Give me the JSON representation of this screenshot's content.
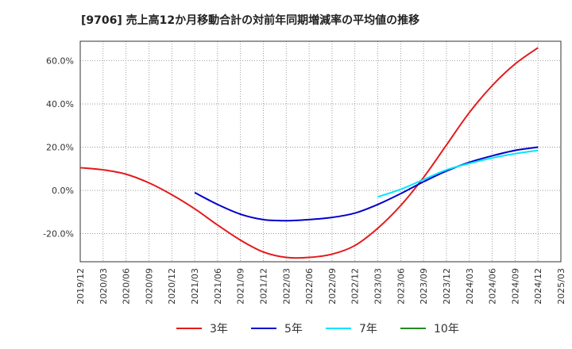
{
  "chart_data": {
    "type": "line",
    "title": "[9706]  売上高12か月移動合計の対前年同期増減率の平均値の推移",
    "xlabel": "",
    "ylabel": "",
    "ylim": [
      -33,
      69
    ],
    "x_ticks": [
      "2019/12",
      "2020/03",
      "2020/06",
      "2020/09",
      "2020/12",
      "2021/03",
      "2021/06",
      "2021/09",
      "2021/12",
      "2022/03",
      "2022/06",
      "2022/09",
      "2022/12",
      "2023/03",
      "2023/06",
      "2023/09",
      "2023/12",
      "2024/03",
      "2024/06",
      "2024/09",
      "2024/12",
      "2025/03"
    ],
    "y_ticks": [
      60,
      40,
      20,
      0,
      -20
    ],
    "y_tick_labels": [
      "60.0%",
      "40.0%",
      "20.0%",
      "0.0%",
      "-20.0%"
    ],
    "grid": true,
    "legend_position": "bottom",
    "series": [
      {
        "name": "3年",
        "color": "#e41a1c",
        "x": [
          "2019/12",
          "2020/03",
          "2020/06",
          "2020/09",
          "2020/12",
          "2021/03",
          "2021/06",
          "2021/09",
          "2021/12",
          "2022/03",
          "2022/06",
          "2022/09",
          "2022/12",
          "2023/03",
          "2023/06",
          "2023/09",
          "2023/12",
          "2024/03",
          "2024/06",
          "2024/09",
          "2024/12"
        ],
        "values": [
          10.5,
          9.5,
          7.5,
          3.5,
          -2.0,
          -8.5,
          -16.0,
          -23.0,
          -28.5,
          -31.0,
          -31.0,
          -29.5,
          -25.5,
          -17.5,
          -7.0,
          6.0,
          21.0,
          36.0,
          48.5,
          58.5,
          66.0
        ]
      },
      {
        "name": "5年",
        "color": "#0000cc",
        "x": [
          "2021/03",
          "2021/06",
          "2021/09",
          "2021/12",
          "2022/03",
          "2022/06",
          "2022/09",
          "2022/12",
          "2023/03",
          "2023/06",
          "2023/09",
          "2023/12",
          "2024/03",
          "2024/06",
          "2024/09",
          "2024/12"
        ],
        "values": [
          -1.0,
          -6.5,
          -11.0,
          -13.5,
          -14.0,
          -13.5,
          -12.5,
          -10.5,
          -6.5,
          -1.5,
          4.0,
          9.0,
          13.0,
          16.0,
          18.5,
          20.0
        ]
      },
      {
        "name": "7年",
        "color": "#00e5ff",
        "x": [
          "2023/03",
          "2023/06",
          "2023/09",
          "2023/12",
          "2024/03",
          "2024/06",
          "2024/09",
          "2024/12"
        ],
        "values": [
          -3.0,
          0.5,
          5.0,
          9.5,
          12.5,
          15.0,
          17.0,
          18.5
        ]
      },
      {
        "name": "10年",
        "color": "#228b22",
        "x": [],
        "values": []
      }
    ]
  }
}
